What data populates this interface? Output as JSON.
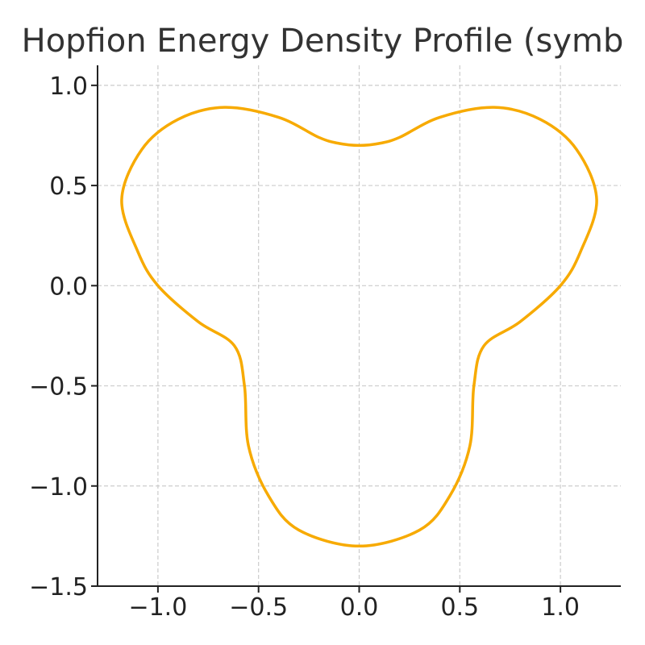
{
  "chart_data": {
    "type": "line",
    "title": "Hopfion Energy Density Profile (symb",
    "xlabel": "",
    "ylabel": "",
    "xlim": [
      -1.3,
      1.3
    ],
    "ylim": [
      -1.5,
      1.1
    ],
    "grid": true,
    "x_ticks": [
      -1.0,
      -0.5,
      0.0,
      0.5,
      1.0
    ],
    "x_tick_labels": [
      "−1.0",
      "−0.5",
      "0.0",
      "0.5",
      "1.0"
    ],
    "y_ticks": [
      -1.5,
      -1.0,
      -0.5,
      0.0,
      0.5,
      1.0
    ],
    "y_tick_labels": [
      "−1.5",
      "−1.0",
      "−0.5",
      "0.0",
      "0.5",
      "1.0"
    ],
    "colors": {
      "line": "#f7aa00",
      "axis": "#222222",
      "grid": "#cccccc"
    },
    "series": [
      {
        "curve": "closed polar curve r = 1 + 0.3 sin(3θ)",
        "points": [
          {
            "x": 0.0,
            "y": 0.7
          },
          {
            "x": 0.1,
            "y": 0.71
          },
          {
            "x": 0.2,
            "y": 0.74
          },
          {
            "x": 0.4,
            "y": 0.84
          },
          {
            "x": 0.67,
            "y": 0.89
          },
          {
            "x": 0.9,
            "y": 0.83
          },
          {
            "x": 1.08,
            "y": 0.68
          },
          {
            "x": 1.18,
            "y": 0.43
          },
          {
            "x": 1.1,
            "y": 0.17
          },
          {
            "x": 1.0,
            "y": 0.0
          },
          {
            "x": 0.8,
            "y": -0.18
          },
          {
            "x": 0.62,
            "y": -0.3
          },
          {
            "x": 0.57,
            "y": -0.5
          },
          {
            "x": 0.55,
            "y": -0.8
          },
          {
            "x": 0.45,
            "y": -1.05
          },
          {
            "x": 0.3,
            "y": -1.22
          },
          {
            "x": 0.0,
            "y": -1.3
          },
          {
            "x": -0.3,
            "y": -1.22
          },
          {
            "x": -0.45,
            "y": -1.05
          },
          {
            "x": -0.55,
            "y": -0.8
          },
          {
            "x": -0.57,
            "y": -0.5
          },
          {
            "x": -0.62,
            "y": -0.3
          },
          {
            "x": -0.8,
            "y": -0.18
          },
          {
            "x": -1.0,
            "y": 0.0
          },
          {
            "x": -1.1,
            "y": 0.17
          },
          {
            "x": -1.18,
            "y": 0.43
          },
          {
            "x": -1.08,
            "y": 0.68
          },
          {
            "x": -0.9,
            "y": 0.83
          },
          {
            "x": -0.67,
            "y": 0.89
          },
          {
            "x": -0.4,
            "y": 0.84
          },
          {
            "x": -0.2,
            "y": 0.74
          },
          {
            "x": -0.1,
            "y": 0.71
          }
        ]
      }
    ]
  }
}
